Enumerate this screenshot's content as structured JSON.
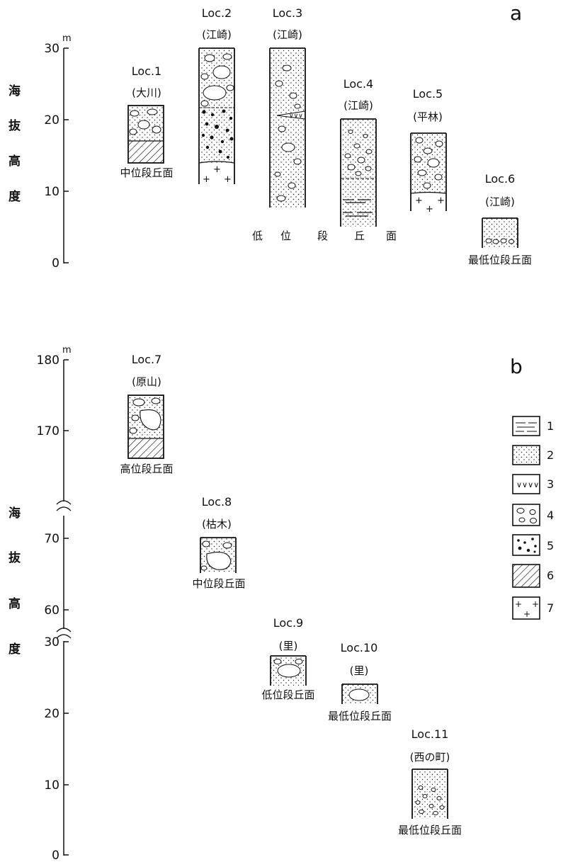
{
  "panel_a": {
    "panel_label": "a",
    "unit": "m",
    "y_axis_title": [
      "海",
      "抜",
      "高",
      "度"
    ],
    "ticks": [
      "30",
      "20",
      "10",
      "0"
    ],
    "columns": [
      {
        "loc": "Loc.1",
        "place": "(大川)",
        "surface": "中位段丘面",
        "top": 22,
        "bottom": 17
      },
      {
        "loc": "Loc.2",
        "place": "(江崎)",
        "surface": "",
        "top": 30,
        "bottom": 11
      },
      {
        "loc": "Loc.3",
        "place": "(江崎)",
        "surface": "",
        "top": 30,
        "bottom": 8
      },
      {
        "loc": "Loc.4",
        "place": "(江崎)",
        "surface": "",
        "top": 20,
        "bottom": 5
      },
      {
        "loc": "Loc.5",
        "place": "(平林)",
        "surface": "",
        "top": 18,
        "bottom": 7
      },
      {
        "loc": "Loc.6",
        "place": "(江崎)",
        "surface": "最低位段丘面",
        "top": 6,
        "bottom": 2
      }
    ],
    "spread_surface": [
      "低",
      "位",
      "段",
      "丘",
      "面"
    ]
  },
  "panel_b": {
    "panel_label": "b",
    "unit": "m",
    "y_axis_title": [
      "海",
      "抜",
      "高",
      "度"
    ],
    "ticks": [
      "180",
      "170",
      "70",
      "60",
      "30",
      "20",
      "10",
      "0"
    ],
    "columns": [
      {
        "loc": "Loc.7",
        "place": "(原山)",
        "surface": "高位段丘面",
        "top": 175,
        "bottom": 168
      },
      {
        "loc": "Loc.8",
        "place": "(枯木)",
        "surface": "中位段丘面",
        "top": 70,
        "bottom": 65
      },
      {
        "loc": "Loc.9",
        "place": "(里)",
        "surface": "低位段丘面",
        "top": 28,
        "bottom": 24
      },
      {
        "loc": "Loc.10",
        "place": "(里)",
        "surface": "最低位段丘面",
        "top": 24,
        "bottom": 21
      },
      {
        "loc": "Loc.11",
        "place": "(西の町)",
        "surface": "最低位段丘面",
        "top": 12,
        "bottom": 5
      }
    ]
  },
  "legend": [
    {
      "num": "1",
      "pattern": "dashes"
    },
    {
      "num": "2",
      "pattern": "dots"
    },
    {
      "num": "3",
      "pattern": "vvv"
    },
    {
      "num": "4",
      "pattern": "cobbles"
    },
    {
      "num": "5",
      "pattern": "black-pebbles"
    },
    {
      "num": "6",
      "pattern": "hatch"
    },
    {
      "num": "7",
      "pattern": "crosses"
    }
  ]
}
